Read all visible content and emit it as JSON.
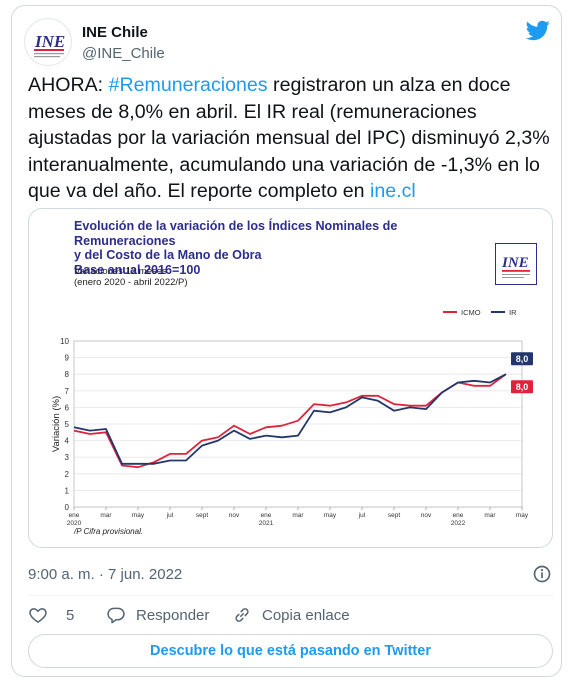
{
  "account": {
    "name": "INE Chile",
    "handle": "@INE_Chile",
    "logo_text": "INE"
  },
  "tweet": {
    "part1": "AHORA: ",
    "hashtag": "#Remuneraciones",
    "part2": " registraron un alza en doce meses de 8,0% en abril. El IR real (remuneraciones ajustadas por la variación mensual del IPC) disminuyó 2,3% interanualmente, acumulando una variación de -1,3% en lo que va del año. El reporte completo en ",
    "link": "ine.cl"
  },
  "timestamp": "9:00 a. m. · 7 jun. 2022",
  "actions": {
    "likes": "5",
    "reply": "Responder",
    "copy_link": "Copia enlace"
  },
  "discover_button": "Descubre lo que está pasando en Twitter",
  "colors": {
    "twitter_blue": "#1d9bf0",
    "icmo": "#e0223a",
    "ir": "#23376b",
    "title_blue": "#2d2d8c"
  },
  "chart_data": {
    "type": "line",
    "title_lines": [
      "Evolución de la variación de los Índices Nominales de Remuneraciones",
      "y del Costo de la Mano de Obra",
      "Base anual 2016=100"
    ],
    "subtitle_lines": [
      "Variaciones 12 meses",
      "(enero 2020 - abril 2022/P)"
    ],
    "xlabel": "",
    "ylabel": "Variación (%)",
    "ylim": [
      0,
      10
    ],
    "yticks": [
      0,
      1,
      2,
      3,
      4,
      5,
      6,
      7,
      8,
      9,
      10
    ],
    "x_tick_labels": [
      "ene",
      "mar",
      "may",
      "jul",
      "sept",
      "nov",
      "ene",
      "mar",
      "may",
      "jul",
      "sept",
      "nov",
      "ene",
      "mar",
      "may"
    ],
    "year_labels": [
      {
        "label": "2020",
        "month_index": 0
      },
      {
        "label": "2021",
        "month_index": 12
      },
      {
        "label": "2022",
        "month_index": 24
      }
    ],
    "months": [
      "ene 2020",
      "feb 2020",
      "mar 2020",
      "abr 2020",
      "may 2020",
      "jun 2020",
      "jul 2020",
      "ago 2020",
      "sept 2020",
      "oct 2020",
      "nov 2020",
      "dic 2020",
      "ene 2021",
      "feb 2021",
      "mar 2021",
      "abr 2021",
      "may 2021",
      "jun 2021",
      "jul 2021",
      "ago 2021",
      "sept 2021",
      "oct 2021",
      "nov 2021",
      "dic 2021",
      "ene 2022",
      "feb 2022",
      "mar 2022",
      "abr 2022"
    ],
    "series": [
      {
        "name": "ICMO",
        "color": "#e0223a",
        "values": [
          4.6,
          4.4,
          4.5,
          2.5,
          2.4,
          2.7,
          3.2,
          3.2,
          4.0,
          4.2,
          4.9,
          4.4,
          4.8,
          4.9,
          5.2,
          6.2,
          6.1,
          6.3,
          6.7,
          6.7,
          6.2,
          6.1,
          6.1,
          6.9,
          7.5,
          7.3,
          7.3,
          8.0
        ]
      },
      {
        "name": "IR",
        "color": "#23376b",
        "values": [
          4.8,
          4.6,
          4.7,
          2.6,
          2.6,
          2.6,
          2.8,
          2.8,
          3.7,
          4.0,
          4.6,
          4.1,
          4.3,
          4.2,
          4.3,
          5.8,
          5.7,
          6.0,
          6.6,
          6.4,
          5.8,
          6.0,
          5.9,
          6.9,
          7.5,
          7.6,
          7.5,
          8.0
        ]
      }
    ],
    "end_labels": [
      {
        "series": "IR",
        "text": "8,0"
      },
      {
        "series": "ICMO",
        "text": "8,0"
      }
    ],
    "legend": [
      "ICMO",
      "IR"
    ],
    "legend_position": "top-right",
    "grid": true,
    "footnote": "/P Cifra provisional."
  }
}
